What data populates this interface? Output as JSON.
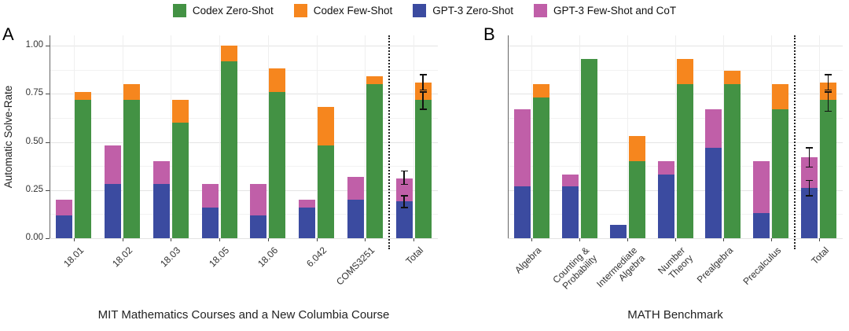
{
  "legend": {
    "position": "top",
    "items": [
      {
        "label": "Codex Zero-Shot",
        "color": "#439244"
      },
      {
        "label": "Codex Few-Shot",
        "color": "#F6861E"
      },
      {
        "label": "GPT-3 Zero-Shot",
        "color": "#3B4BA0"
      },
      {
        "label": "GPT-3 Few-Shot and CoT",
        "color": "#C05FA8"
      }
    ]
  },
  "colors": {
    "codex_zero_shot": "#439244",
    "codex_few_shot": "#F6861E",
    "gpt3_zero_shot": "#3B4BA0",
    "gpt3_few_shot_cot": "#C05FA8"
  },
  "chart_data": [
    {
      "type": "bar",
      "panel_label": "A",
      "title": "MIT Mathematics Courses and a New Columbia Course",
      "xlabel": "MIT Mathematics Courses and a New Columbia Course",
      "ylabel": "Automatic Solve-Rate",
      "ylim": [
        0,
        1.0
      ],
      "yticks": [
        "0.00",
        "0.25",
        "0.50",
        "0.75",
        "1.00"
      ],
      "ytick_values": [
        0,
        0.25,
        0.5,
        0.75,
        1.0
      ],
      "grid": true,
      "stacking": "values are cumulative stack tops",
      "separator_before_category": "Total",
      "categories": [
        {
          "label": "18.01",
          "gpt3_zero_shot": 0.12,
          "gpt3_few_shot_cot": 0.2,
          "codex_zero_shot": 0.72,
          "codex_few_shot": 0.76
        },
        {
          "label": "18.02",
          "gpt3_zero_shot": 0.28,
          "gpt3_few_shot_cot": 0.48,
          "codex_zero_shot": 0.72,
          "codex_few_shot": 0.8
        },
        {
          "label": "18.03",
          "gpt3_zero_shot": 0.28,
          "gpt3_few_shot_cot": 0.4,
          "codex_zero_shot": 0.6,
          "codex_few_shot": 0.72
        },
        {
          "label": "18.05",
          "gpt3_zero_shot": 0.16,
          "gpt3_few_shot_cot": 0.28,
          "codex_zero_shot": 0.92,
          "codex_few_shot": 1.0
        },
        {
          "label": "18.06",
          "gpt3_zero_shot": 0.12,
          "gpt3_few_shot_cot": 0.28,
          "codex_zero_shot": 0.76,
          "codex_few_shot": 0.88
        },
        {
          "label": "6.042",
          "gpt3_zero_shot": 0.16,
          "gpt3_few_shot_cot": 0.2,
          "codex_zero_shot": 0.48,
          "codex_few_shot": 0.68
        },
        {
          "label": "COMS3251",
          "gpt3_zero_shot": 0.2,
          "gpt3_few_shot_cot": 0.32,
          "codex_zero_shot": 0.8,
          "codex_few_shot": 0.84
        },
        {
          "label": "Total",
          "gpt3_zero_shot": 0.19,
          "gpt3_few_shot_cot": 0.31,
          "codex_zero_shot": 0.72,
          "codex_few_shot": 0.81,
          "error_bars": {
            "gpt3_zero_shot": [
              0.16,
              0.22
            ],
            "gpt3_few_shot_cot": [
              0.28,
              0.35
            ],
            "codex_zero_shot": [
              0.67,
              0.76
            ],
            "codex_few_shot": [
              0.77,
              0.85
            ]
          }
        }
      ]
    },
    {
      "type": "bar",
      "panel_label": "B",
      "title": "MATH Benchmark",
      "xlabel": "MATH Benchmark",
      "ylabel": "Automatic Solve-Rate",
      "ylim": [
        0,
        1.0
      ],
      "yticks": [],
      "ytick_values": [
        0,
        0.25,
        0.5,
        0.75,
        1.0
      ],
      "grid": true,
      "stacking": "values are cumulative stack tops",
      "separator_before_category": "Total",
      "categories": [
        {
          "label": "Algebra",
          "gpt3_zero_shot": 0.27,
          "gpt3_few_shot_cot": 0.67,
          "codex_zero_shot": 0.73,
          "codex_few_shot": 0.8
        },
        {
          "label": "Counting &\nProbability",
          "gpt3_zero_shot": 0.27,
          "gpt3_few_shot_cot": 0.33,
          "codex_zero_shot": 0.93,
          "codex_few_shot": 0.93
        },
        {
          "label": "Intermediate\nAlgebra",
          "gpt3_zero_shot": 0.07,
          "gpt3_few_shot_cot": 0.07,
          "codex_zero_shot": 0.4,
          "codex_few_shot": 0.53
        },
        {
          "label": "Number\nTheory",
          "gpt3_zero_shot": 0.33,
          "gpt3_few_shot_cot": 0.4,
          "codex_zero_shot": 0.8,
          "codex_few_shot": 0.93
        },
        {
          "label": "Prealgebra",
          "gpt3_zero_shot": 0.47,
          "gpt3_few_shot_cot": 0.67,
          "codex_zero_shot": 0.8,
          "codex_few_shot": 0.87
        },
        {
          "label": "Precalculus",
          "gpt3_zero_shot": 0.13,
          "gpt3_few_shot_cot": 0.4,
          "codex_zero_shot": 0.67,
          "codex_few_shot": 0.8
        },
        {
          "label": "Total",
          "gpt3_zero_shot": 0.26,
          "gpt3_few_shot_cot": 0.42,
          "codex_zero_shot": 0.72,
          "codex_few_shot": 0.81,
          "error_bars": {
            "gpt3_zero_shot": [
              0.22,
              0.3
            ],
            "gpt3_few_shot_cot": [
              0.37,
              0.47
            ],
            "codex_zero_shot": [
              0.66,
              0.76
            ],
            "codex_few_shot": [
              0.77,
              0.85
            ]
          }
        }
      ]
    }
  ]
}
